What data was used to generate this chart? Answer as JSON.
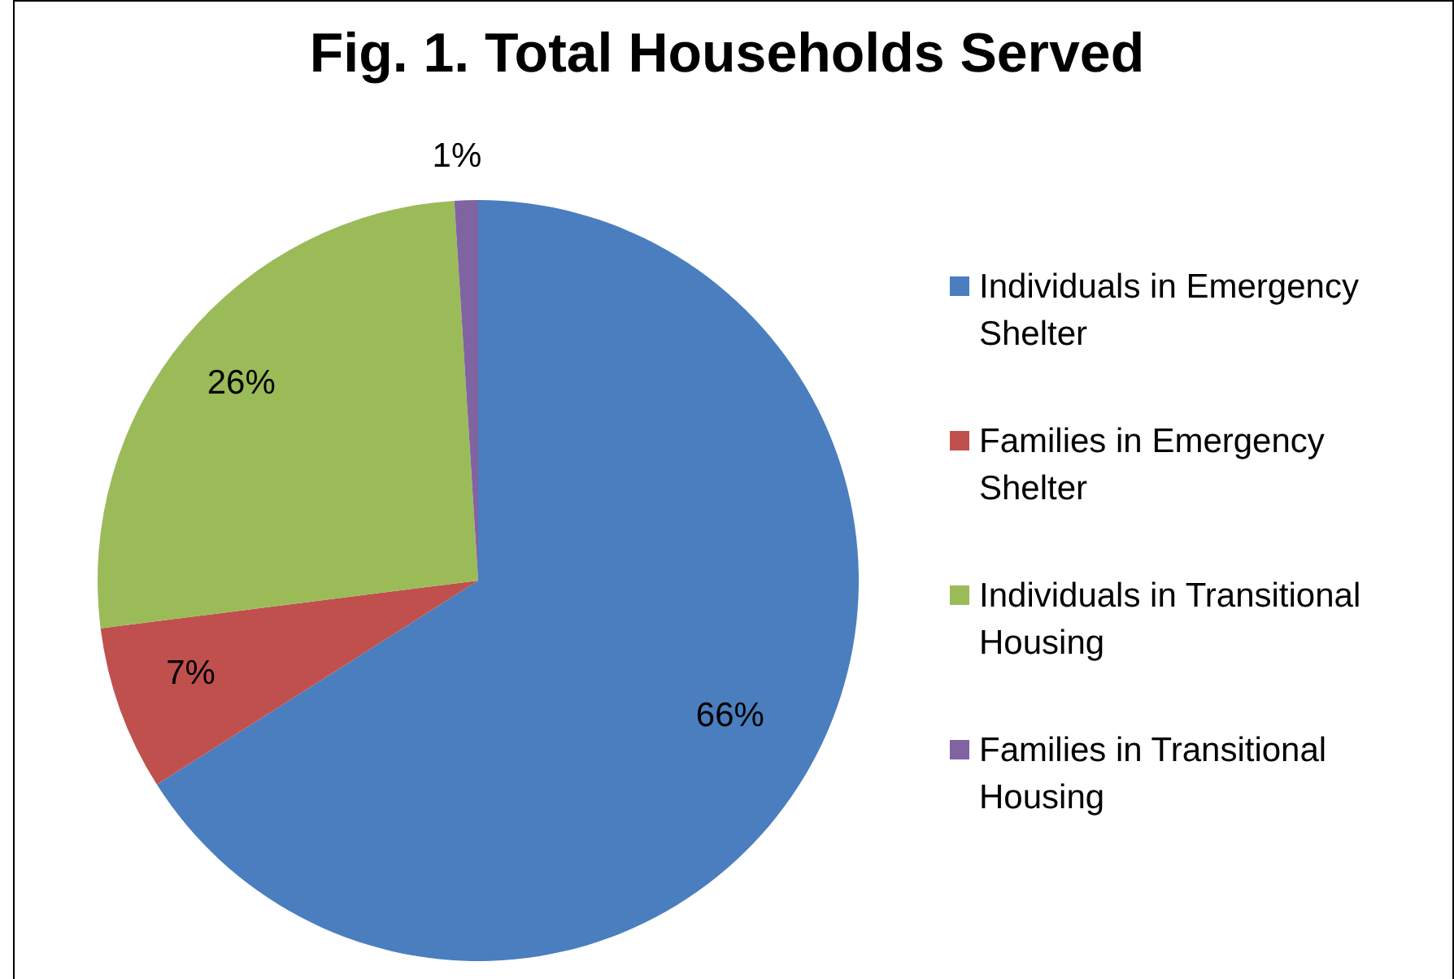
{
  "chart_data": {
    "type": "pie",
    "title": "Fig. 1. Total Households Served",
    "categories": [
      "Individuals in Emergency Shelter",
      "Families in Emergency Shelter",
      "Individuals in Transitional Housing",
      "Families in Transitional Housing"
    ],
    "values": [
      66,
      7,
      26,
      1
    ],
    "colors": [
      "#4a7ebf",
      "#c0504d",
      "#9bbb59",
      "#8064a2"
    ],
    "value_labels": [
      "66%",
      "7%",
      "26%",
      "1%"
    ],
    "legend": "right"
  }
}
